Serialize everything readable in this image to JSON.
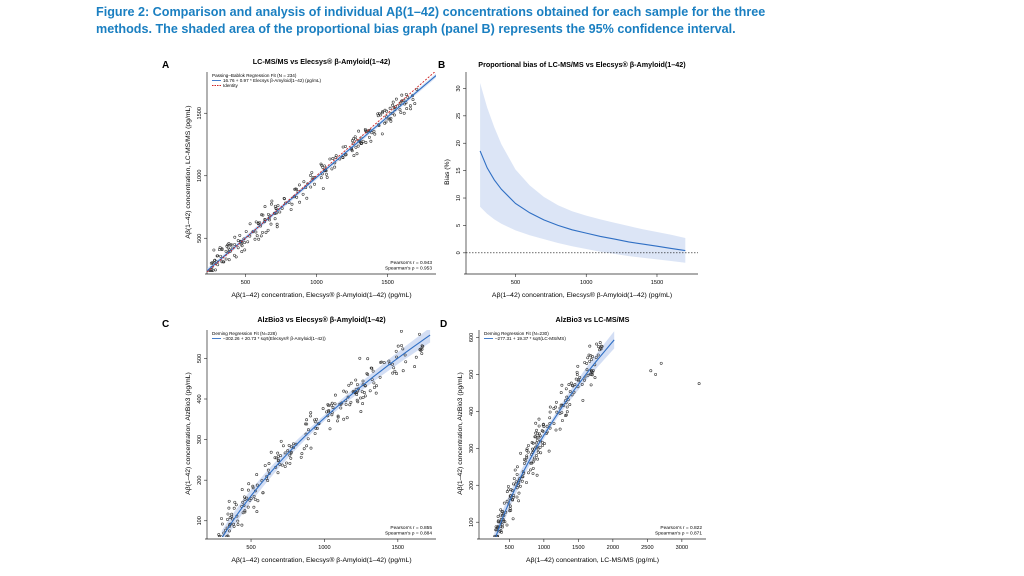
{
  "caption": {
    "line1": "Figure 2: Comparison and analysis of individual Aβ(1–42) concentrations obtained for each sample for the three",
    "line2": "methods. The shaded area of the proportional bias graph (panel B) represents the 95% confidence interval."
  },
  "colors": {
    "caption": "#1a7fc1",
    "fit_line": "#2f6fc4",
    "band": "#c4d3f0",
    "identity": "#cc2222",
    "point": "#333333"
  },
  "chart_data": [
    {
      "panel": "A",
      "type": "scatter",
      "title": "LC-MS/MS vs Elecsys® β-Amyloid(1–42)",
      "xlabel": "Aβ(1–42) concentration, Elecsys® β-Amyloid(1–42) (pg/mL)",
      "ylabel": "Aβ(1–42) concentration, LC-MS/MS (pg/mL)",
      "xlim": [
        230,
        1840
      ],
      "ylim": [
        230,
        1830
      ],
      "xticks": [
        500,
        1000,
        1500
      ],
      "yticks": [
        500,
        1000,
        1500
      ],
      "legend": {
        "title": "Passing–Bablok Regression Fit (N = 234)",
        "entries": [
          "16.76 + 0.97 * Elecsys β-Amyloid(1–42) (pg/mL)",
          "Identity"
        ]
      },
      "stats": [
        "Pearson's r = 0.943",
        "Spearman's ρ = 0.953"
      ],
      "fit": {
        "form": "linear",
        "intercept": 16.76,
        "slope": 0.97
      },
      "identity": true,
      "points": {
        "n": 234,
        "x_range": [
          250,
          1720
        ],
        "form": "linear",
        "a": 16.76,
        "b": 0.97,
        "noise_sd": 85,
        "seed": 11
      }
    },
    {
      "panel": "B",
      "type": "line",
      "title": "Proportional bias of LC-MS/MS vs Elecsys® β-Amyloid(1–42)",
      "xlabel": "Aβ(1–42) concentration, Elecsys® β-Amyloid(1–42) (pg/mL)",
      "ylabel": "Bias (%)",
      "xlim": [
        150,
        1790
      ],
      "ylim": [
        -3.5,
        33
      ],
      "xticks": [
        500,
        1000,
        1500
      ],
      "yticks": [
        0,
        5,
        10,
        15,
        20,
        25,
        30
      ],
      "series": [
        {
          "x": [
            250,
            300,
            350,
            400,
            500,
            600,
            700,
            800,
            900,
            1000,
            1100,
            1200,
            1300,
            1400,
            1500,
            1600,
            1700
          ],
          "bias": [
            18.6,
            15.5,
            13.3,
            11.6,
            9.0,
            7.3,
            6.0,
            5.0,
            4.2,
            3.6,
            3.0,
            2.5,
            2.0,
            1.6,
            1.2,
            0.8,
            0.4
          ],
          "lower": [
            8.4,
            7.1,
            6.1,
            5.3,
            4.1,
            3.2,
            2.5,
            1.8,
            1.2,
            0.7,
            0.2,
            -0.2,
            -0.6,
            -0.9,
            -1.2,
            -1.5,
            -1.8
          ],
          "upper": [
            31.0,
            26.5,
            22.9,
            19.8,
            15.2,
            12.3,
            10.2,
            8.7,
            7.6,
            6.8,
            6.1,
            5.5,
            4.9,
            4.3,
            3.8,
            3.3,
            2.7
          ]
        }
      ],
      "reference_line": 0
    },
    {
      "panel": "C",
      "type": "scatter",
      "title": "AlzBio3 vs Elecsys® β-Amyloid(1–42)",
      "xlabel": "Aβ(1–42) concentration, Elecsys® β-Amyloid(1–42) (pg/mL)",
      "ylabel": "Aβ(1–42) concentration, AlzBio3 (pg/mL)",
      "xlim": [
        200,
        1760
      ],
      "ylim": [
        60,
        570
      ],
      "xticks": [
        500,
        1000,
        1500
      ],
      "yticks": [
        100,
        200,
        300,
        400,
        500
      ],
      "legend": {
        "title": "Deming Regression Fit (N=228)",
        "entries": [
          "–302.26 + 20.73 * sqrt(Elecsys® β-Amyloid(1–42))"
        ]
      },
      "stats": [
        "Pearson's r = 0.855",
        "Spearman's ρ = 0.884"
      ],
      "fit": {
        "form": "sqrt",
        "a": -302.26,
        "b": 20.73,
        "x_range": [
          300,
          1720
        ],
        "band_halfwidth": 14
      },
      "points": {
        "n": 228,
        "x_range": [
          280,
          1700
        ],
        "form": "sqrt",
        "a": -302.26,
        "b": 20.73,
        "noise_sd": 42,
        "seed": 23
      }
    },
    {
      "panel": "D",
      "type": "scatter",
      "title": "AlzBio3 vs LC-MS/MS",
      "xlabel": "Aβ(1–42) concentration, LC-MS/MS (pg/mL)",
      "ylabel": "Aβ(1–42) concentration, AlzBio3 (pg/mL)",
      "xlim": [
        60,
        3350
      ],
      "ylim": [
        60,
        620
      ],
      "xticks": [
        500,
        1000,
        1500,
        2000,
        2500,
        3000
      ],
      "yticks": [
        100,
        200,
        300,
        400,
        500,
        600
      ],
      "legend": {
        "title": "Deming Regression Fit (N=230)",
        "entries": [
          "–277.31 + 19.37 * sqrt(LC-MS/MS)"
        ]
      },
      "stats": [
        "Pearson's r = 0.822",
        "Spearman's ρ = 0.871"
      ],
      "fit": {
        "form": "sqrt",
        "a": -277.31,
        "b": 19.37,
        "x_range": [
          230,
          2020
        ],
        "band_halfwidth": 18
      },
      "points": {
        "n": 230,
        "x_range": [
          280,
          1850
        ],
        "form": "sqrt",
        "a": -277.31,
        "b": 19.37,
        "noise_sd": 48,
        "seed": 37,
        "outliers": [
          [
            2550,
            510
          ],
          [
            2620,
            500
          ],
          [
            2700,
            530
          ],
          [
            3250,
            475
          ]
        ]
      }
    }
  ]
}
